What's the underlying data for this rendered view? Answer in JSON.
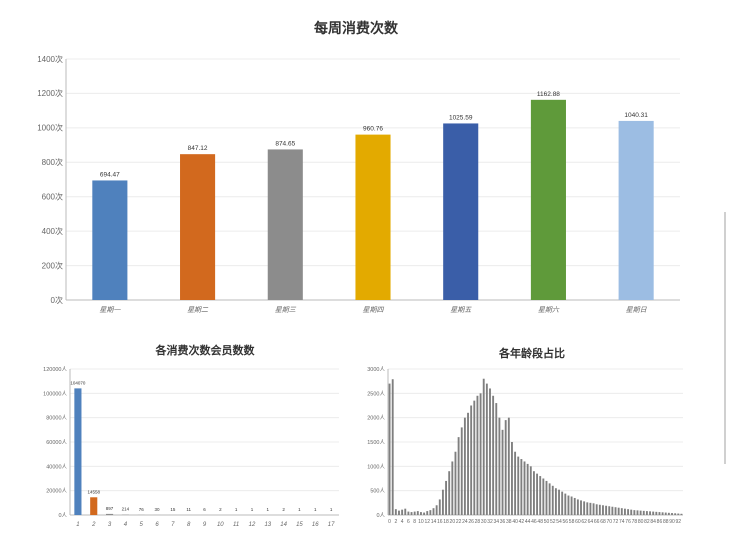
{
  "chart_data": [
    {
      "type": "bar",
      "title": "每周消费次数",
      "categories": [
        "星期一",
        "星期二",
        "星期三",
        "星期四",
        "星期五",
        "星期六",
        "星期日"
      ],
      "values": [
        694.47,
        847.12,
        874.65,
        960.76,
        1025.59,
        1162.88,
        1040.31
      ],
      "value_labels": [
        "694.47",
        "847.12",
        "874.65",
        "960.76",
        "1025.59",
        "1162.88",
        "1040.31"
      ],
      "colors": [
        "#4f81bd",
        "#d2691e",
        "#8c8c8c",
        "#e3aa00",
        "#3a5ea8",
        "#5f9a3a",
        "#9cbde3"
      ],
      "ylim": [
        0,
        1400
      ],
      "yticks": [
        0,
        200,
        400,
        600,
        800,
        1000,
        1200,
        1400
      ],
      "ytick_labels": [
        "0次",
        "200次",
        "400次",
        "600次",
        "800次",
        "1000次",
        "1200次",
        "1400次"
      ],
      "grid": true,
      "xlabel": "",
      "ylabel": ""
    },
    {
      "type": "bar",
      "title": "各消费次数会员数数",
      "categories": [
        "1",
        "2",
        "3",
        "4",
        "5",
        "6",
        "7",
        "8",
        "9",
        "10",
        "11",
        "12",
        "13",
        "14",
        "15",
        "16",
        "17"
      ],
      "values": [
        104070,
        14558,
        897,
        214,
        76,
        30,
        15,
        11,
        6,
        2,
        1,
        1,
        1,
        2,
        1,
        1,
        1
      ],
      "value_labels": [
        "104070",
        "14558",
        "897",
        "214",
        "76",
        "30",
        "15",
        "11",
        "6",
        "2",
        "1",
        "1",
        "1",
        "2",
        "1",
        "1",
        "1"
      ],
      "colors": [
        "#4f81bd",
        "#d2691e",
        "#8c8c8c"
      ],
      "ylim": [
        0,
        120000
      ],
      "yticks": [
        0,
        20000,
        40000,
        60000,
        80000,
        100000,
        120000
      ],
      "ytick_labels": [
        "0人",
        "20000人",
        "40000人",
        "60000人",
        "80000人",
        "100000人",
        "120000人"
      ],
      "grid": true,
      "xlabel": "",
      "ylabel": ""
    },
    {
      "type": "bar",
      "title": "各年龄段占比",
      "x_start": 0,
      "x_tick_step": 2,
      "values": [
        2700,
        2790,
        120,
        90,
        110,
        130,
        70,
        60,
        70,
        80,
        60,
        50,
        80,
        100,
        140,
        200,
        320,
        520,
        700,
        900,
        1100,
        1300,
        1600,
        1800,
        2000,
        2100,
        2250,
        2350,
        2450,
        2500,
        2800,
        2700,
        2600,
        2450,
        2300,
        2000,
        1750,
        1950,
        2000,
        1500,
        1300,
        1200,
        1150,
        1100,
        1050,
        1000,
        900,
        850,
        800,
        750,
        700,
        650,
        600,
        550,
        520,
        480,
        440,
        400,
        380,
        350,
        320,
        300,
        280,
        260,
        250,
        240,
        220,
        210,
        200,
        190,
        180,
        170,
        160,
        150,
        140,
        130,
        120,
        110,
        100,
        95,
        90,
        85,
        80,
        75,
        70,
        65,
        60,
        55,
        50,
        45,
        40,
        35,
        30,
        25
      ],
      "color": "#7f7f7f",
      "ylim": [
        0,
        3000
      ],
      "yticks": [
        0,
        500,
        1000,
        1500,
        2000,
        2500,
        3000
      ],
      "ytick_labels": [
        "0人",
        "500人",
        "1000人",
        "1500人",
        "2000人",
        "2500人",
        "3000人"
      ],
      "grid": true,
      "xlabel": "",
      "ylabel": ""
    }
  ]
}
